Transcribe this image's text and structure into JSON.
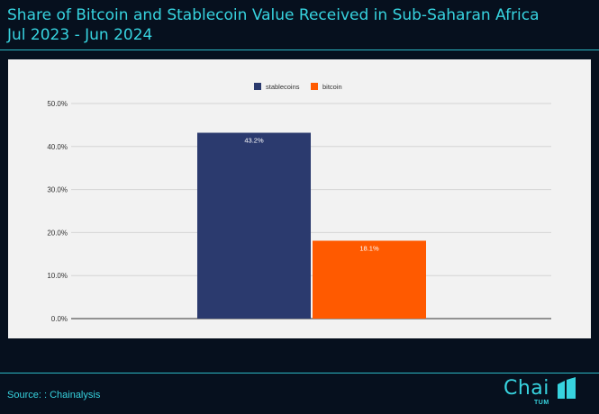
{
  "header": {
    "title_line1": "Share of Bitcoin and Stablecoin Value Received in Sub-Saharan Africa",
    "title_line2": "Jul 2023 - Jun 2024"
  },
  "footer": {
    "source": "Source: : Chainalysis",
    "logo_text": "Chai",
    "logo_sub": "TUM"
  },
  "chart_data": {
    "type": "bar",
    "categories": [
      ""
    ],
    "series": [
      {
        "name": "stablecoins",
        "values": [
          43.2
        ],
        "color": "#2b3a6e",
        "label": "43.2%"
      },
      {
        "name": "bitcoin",
        "values": [
          18.1
        ],
        "color": "#ff5a00",
        "label": "18.1%"
      }
    ],
    "ylim": [
      0,
      50
    ],
    "yticks": [
      "0.0%",
      "10.0%",
      "20.0%",
      "30.0%",
      "40.0%",
      "50.0%"
    ],
    "legend_position": "top-center",
    "grid": true,
    "title": "",
    "xlabel": "",
    "ylabel": ""
  }
}
